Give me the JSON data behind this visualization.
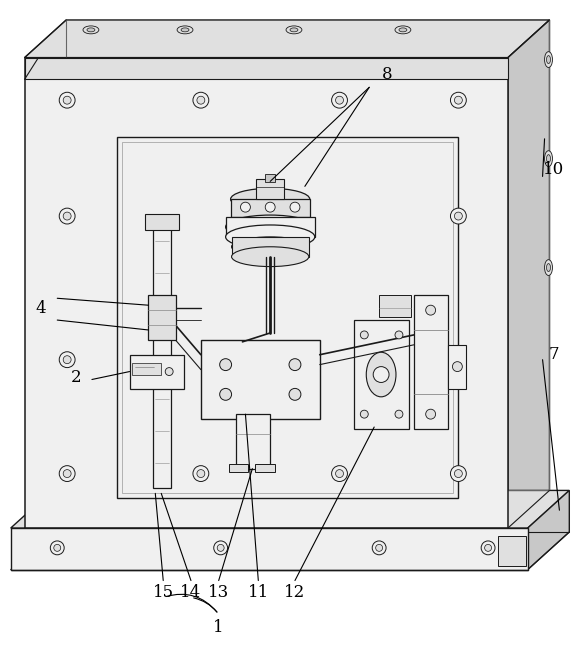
{
  "bg_color": "#ffffff",
  "lc": "#1a1a1a",
  "fc_white": "#ffffff",
  "fc_light": "#f0f0f0",
  "fc_mid": "#e0e0e0",
  "fc_dark": "#c8c8c8",
  "fc_darkest": "#b0b0b0",
  "figsize": [
    5.81,
    6.53
  ],
  "dpi": 100,
  "label_fs": 12
}
